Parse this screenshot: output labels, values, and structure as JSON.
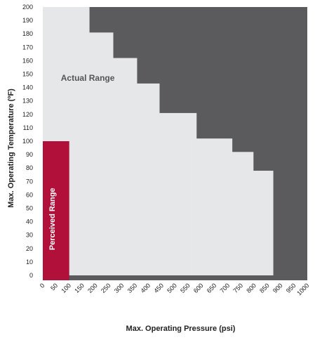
{
  "chart_data": {
    "type": "area",
    "title": "",
    "xlabel": "Max. Operating Pressure (psi)",
    "ylabel": "Max. Operating Temperature (ºF)",
    "xlim": [
      0,
      1000
    ],
    "ylim": [
      0,
      200
    ],
    "x_ticks": [
      "0",
      "50",
      "100",
      "150",
      "200",
      "250",
      "300",
      "350",
      "400",
      "450",
      "500",
      "550",
      "600",
      "650",
      "700",
      "750",
      "800",
      "850",
      "900",
      "950",
      "1000"
    ],
    "y_ticks": [
      "0",
      "10",
      "20",
      "30",
      "40",
      "50",
      "60",
      "70",
      "80",
      "90",
      "100",
      "110",
      "120",
      "130",
      "140",
      "150",
      "160",
      "170",
      "180",
      "190",
      "200"
    ],
    "colors": {
      "background": "#5b5a5c",
      "actual": "#e6e7e9",
      "perceived": "#b0103a",
      "baseline": "#5b5a5c"
    },
    "series": [
      {
        "name": "Actual Range",
        "steps": [
          {
            "x_start": 0,
            "x_end": 175,
            "y": 200
          },
          {
            "x_start": 175,
            "x_end": 265,
            "y": 181
          },
          {
            "x_start": 265,
            "x_end": 355,
            "y": 162
          },
          {
            "x_start": 355,
            "x_end": 440,
            "y": 143
          },
          {
            "x_start": 440,
            "x_end": 580,
            "y": 121
          },
          {
            "x_start": 580,
            "x_end": 715,
            "y": 102
          },
          {
            "x_start": 715,
            "x_end": 795,
            "y": 92
          },
          {
            "x_start": 795,
            "x_end": 870,
            "y": 78
          }
        ]
      },
      {
        "name": "Perceived Range",
        "steps": [
          {
            "x_start": 0,
            "x_end": 100,
            "y": 100
          }
        ]
      }
    ],
    "annotations": [
      {
        "text": "Actual Range",
        "x": 170,
        "y": 145
      },
      {
        "text": "Perceived Range",
        "x": 45,
        "y": 42
      }
    ]
  }
}
